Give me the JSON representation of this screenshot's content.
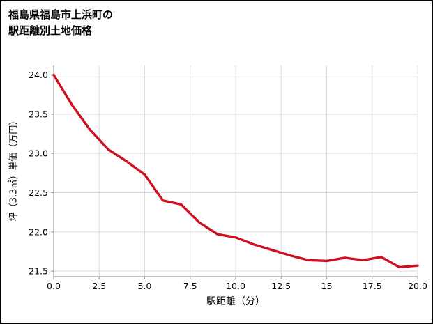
{
  "chart_data": {
    "type": "line",
    "title": "福島県福島市上浜町の駅距離別土地価格",
    "title_lines": [
      "福島県福島市上浜町の",
      "駅距離別土地価格"
    ],
    "xlabel": "駅距離（分）",
    "ylabel": "坪（3.3㎡）単価（万円）",
    "x": [
      0,
      1,
      2,
      3,
      4,
      5,
      6,
      7,
      8,
      9,
      10,
      11,
      12,
      13,
      14,
      15,
      16,
      17,
      18,
      19,
      20
    ],
    "y": [
      24.0,
      23.62,
      23.3,
      23.05,
      22.9,
      22.73,
      22.4,
      22.35,
      22.12,
      21.97,
      21.93,
      21.84,
      21.77,
      21.7,
      21.64,
      21.63,
      21.67,
      21.64,
      21.68,
      21.55,
      21.57
    ],
    "xlim": [
      0,
      20
    ],
    "ylim": [
      21.43,
      24.12
    ],
    "xticks": [
      0,
      2.5,
      5,
      7.5,
      10,
      12.5,
      15,
      17.5,
      20
    ],
    "xtick_labels": [
      "0.0",
      "2.5",
      "5.0",
      "7.5",
      "10.0",
      "12.5",
      "15",
      "17.5",
      "20.0"
    ],
    "yticks": [
      21.5,
      22.0,
      22.5,
      23.0,
      23.5,
      24.0
    ],
    "ytick_labels": [
      "21.5",
      "22.0",
      "22.5",
      "23.0",
      "23.5",
      "24.0"
    ],
    "grid": true,
    "legend": "none",
    "line_color": "#cf1020",
    "grid_color": "#dcdcdc",
    "axis_color": "#9a9a9a",
    "text_color": "#000000"
  }
}
